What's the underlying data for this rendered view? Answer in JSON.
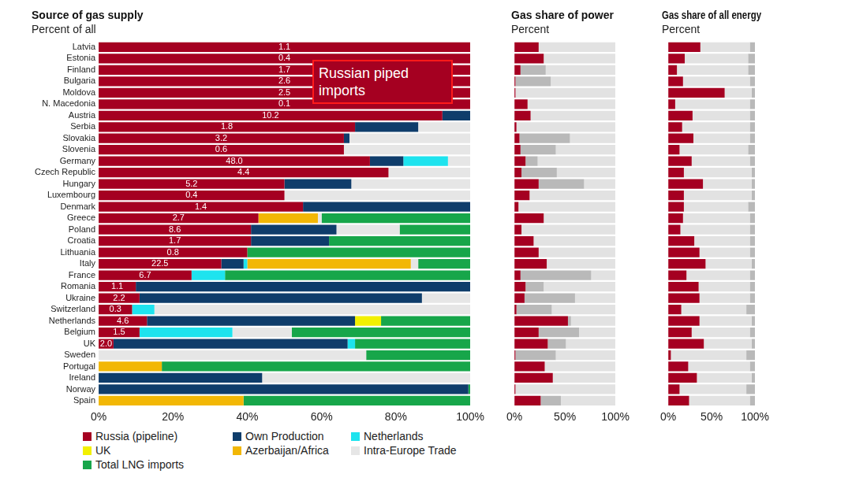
{
  "chart_data": [
    {
      "type": "bar",
      "title": "Source of gas supply",
      "subtitle": "Percent of all",
      "orientation": "horizontal",
      "stacked": true,
      "grid": false,
      "legend": "bottom",
      "annotation": "Russian piped imports",
      "categories": [
        "Latvia",
        "Estonia",
        "Finland",
        "Bulgaria",
        "Moldova",
        "N. Macedonia",
        "Austria",
        "Serbia",
        "Slovakia",
        "Slovenia",
        "Germany",
        "Czech Republic",
        "Hungary",
        "Luxembourg",
        "Denmark",
        "Greece",
        "Poland",
        "Croatia",
        "Lithuania",
        "Italy",
        "France",
        "Romania",
        "Ukraine",
        "Switzerland",
        "Netherlands",
        "Belgium",
        "UK",
        "Sweden",
        "Portugal",
        "Ireland",
        "Norway",
        "Spain"
      ],
      "xlim": [
        0,
        100
      ],
      "xticks": [
        {
          "value": 0,
          "label": "0%"
        },
        {
          "value": 20,
          "label": "20%"
        },
        {
          "value": 40,
          "label": "40%"
        },
        {
          "value": 60,
          "label": "60%"
        },
        {
          "value": 80,
          "label": "80%"
        },
        {
          "value": 100,
          "label": "100%"
        }
      ],
      "series": [
        {
          "name": "Russia (pipeline)",
          "color": "#a50021",
          "values": [
            100,
            100,
            100,
            100,
            100,
            100,
            92.5,
            69,
            66,
            66,
            73,
            78,
            50,
            50,
            55,
            43,
            41,
            41,
            40,
            33,
            25,
            10,
            11,
            9,
            13,
            11,
            4,
            0,
            0,
            0,
            0,
            0
          ],
          "volumes": [
            "1.1",
            "0.4",
            "1.7",
            "2.6",
            "2.5",
            "0.1",
            "10.2",
            "1.8",
            "3.2",
            "0.6",
            "48.0",
            "4.4",
            "5.2",
            "0.4",
            "1.4",
            "2.7",
            "8.6",
            "1.7",
            "0.8",
            "22.5",
            "6.7",
            "1.1",
            "2.2",
            "0.3",
            "4.6",
            "1.5",
            "2.0",
            null,
            null,
            null,
            null,
            null
          ]
        },
        {
          "name": "Own Production",
          "color": "#0f3d6b",
          "values": [
            0,
            0,
            0,
            0,
            0,
            0,
            7.5,
            17,
            1.5,
            0,
            9,
            0,
            18,
            0,
            45,
            0,
            23,
            21,
            0,
            6,
            0,
            90,
            76,
            0,
            56,
            0,
            63,
            0,
            0,
            44,
            99.5,
            0
          ]
        },
        {
          "name": "Netherlands",
          "color": "#1ee3ee",
          "values": [
            0,
            0,
            0,
            0,
            0,
            0,
            0,
            0,
            0,
            0,
            12,
            0,
            0,
            0,
            0,
            0,
            0,
            0,
            0,
            1,
            9,
            0,
            0,
            6,
            0,
            25,
            2,
            0,
            0,
            0,
            0,
            0
          ]
        },
        {
          "name": "UK",
          "color": "#f2f000",
          "values": [
            0,
            0,
            0,
            0,
            0,
            0,
            0,
            0,
            0,
            0,
            0,
            0,
            0,
            0,
            0,
            0,
            0,
            0,
            0,
            0,
            0,
            0,
            0,
            0,
            7,
            0,
            0,
            0,
            0,
            0,
            0,
            0
          ]
        },
        {
          "name": "Azerbaijan/Africa",
          "color": "#f2b705",
          "values": [
            0,
            0,
            0,
            0,
            0,
            0,
            0,
            0,
            0,
            0,
            0,
            0,
            0,
            0,
            0,
            16,
            0,
            0,
            0,
            44,
            0,
            0,
            0,
            0,
            0,
            0,
            0,
            0,
            17,
            0,
            0,
            39
          ]
        },
        {
          "name": "Intra-Europe Trade",
          "color": "#e6e6e6",
          "values": [
            0,
            0,
            0,
            0,
            0,
            0,
            0,
            14,
            32.5,
            34,
            6,
            22,
            32,
            50,
            0,
            1,
            17,
            0,
            0,
            2,
            0,
            0,
            13,
            85,
            0,
            16,
            0,
            72,
            0,
            56,
            0,
            0
          ]
        },
        {
          "name": "Total LNG imports",
          "color": "#17a64a",
          "values": [
            0,
            0,
            0,
            0,
            0,
            0,
            0,
            0,
            0,
            0,
            0,
            0,
            0,
            0,
            0,
            40,
            19,
            38,
            60,
            14,
            66,
            0,
            0,
            0,
            24,
            48,
            31,
            28,
            83,
            0,
            0.5,
            61
          ]
        }
      ]
    },
    {
      "type": "bar",
      "title": "Gas share of power",
      "subtitle": "Percent",
      "orientation": "horizontal",
      "stacked": true,
      "grid": false,
      "tick_labels": "x",
      "categories": [
        "Latvia",
        "Estonia",
        "Finland",
        "Bulgaria",
        "Moldova",
        "N. Macedonia",
        "Austria",
        "Serbia",
        "Slovakia",
        "Slovenia",
        "Germany",
        "Czech Republic",
        "Hungary",
        "Luxembourg",
        "Denmark",
        "Greece",
        "Poland",
        "Croatia",
        "Lithuania",
        "Italy",
        "France",
        "Romania",
        "Ukraine",
        "Switzerland",
        "Netherlands",
        "Belgium",
        "UK",
        "Sweden",
        "Portugal",
        "Ireland",
        "Norway",
        "Spain"
      ],
      "xlim": [
        0,
        100
      ],
      "xticks": [
        {
          "value": 0,
          "label": "0%"
        },
        {
          "value": 50,
          "label": "50%"
        },
        {
          "value": 100,
          "label": "100%"
        }
      ],
      "series": [
        {
          "color": "#a50021",
          "values": [
            24,
            29,
            6,
            1,
            1,
            13,
            16,
            2,
            5,
            6,
            11,
            7,
            24,
            15,
            4,
            29,
            7,
            19,
            24,
            32,
            6,
            11,
            10,
            2,
            53,
            24,
            33,
            1,
            30,
            38,
            1,
            26
          ]
        },
        {
          "color": "#b9b9b9",
          "values": [
            0,
            0,
            25,
            35,
            0,
            0,
            0,
            0,
            50,
            35,
            12,
            35,
            45,
            0,
            0,
            0,
            0,
            0,
            0,
            0,
            70,
            18,
            50,
            35,
            3,
            40,
            18,
            40,
            0,
            0,
            0,
            20
          ]
        },
        {
          "color": "#e2e2e2",
          "values": [
            76,
            71,
            69,
            64,
            99,
            87,
            84,
            98,
            45,
            59,
            77,
            58,
            31,
            85,
            96,
            71,
            93,
            81,
            76,
            68,
            24,
            71,
            40,
            63,
            44,
            36,
            49,
            59,
            70,
            62,
            99,
            54
          ]
        }
      ]
    },
    {
      "type": "bar",
      "title": "Gas share of all energy",
      "subtitle": "Percent",
      "orientation": "horizontal",
      "stacked": true,
      "grid": false,
      "tick_labels": "x",
      "categories": [
        "Latvia",
        "Estonia",
        "Finland",
        "Bulgaria",
        "Moldova",
        "N. Macedonia",
        "Austria",
        "Serbia",
        "Slovakia",
        "Slovenia",
        "Germany",
        "Czech Republic",
        "Hungary",
        "Luxembourg",
        "Denmark",
        "Greece",
        "Poland",
        "Croatia",
        "Lithuania",
        "Italy",
        "France",
        "Romania",
        "Ukraine",
        "Switzerland",
        "Netherlands",
        "Belgium",
        "UK",
        "Sweden",
        "Portugal",
        "Ireland",
        "Norway",
        "Spain"
      ],
      "xlim": [
        0,
        100
      ],
      "xticks": [
        {
          "value": 0,
          "label": "0%"
        },
        {
          "value": 50,
          "label": "50%"
        },
        {
          "value": 100,
          "label": "100%"
        }
      ],
      "series": [
        {
          "color": "#a50021",
          "values": [
            37,
            19,
            10,
            17,
            65,
            8,
            28,
            16,
            29,
            13,
            27,
            18,
            40,
            18,
            18,
            17,
            14,
            30,
            36,
            43,
            21,
            35,
            36,
            15,
            36,
            27,
            41,
            3,
            23,
            33,
            13,
            24
          ]
        },
        {
          "color": "#e2e2e2",
          "values": [
            57,
            73,
            82,
            77,
            31,
            86,
            66,
            78,
            65,
            79,
            67,
            78,
            56,
            78,
            74,
            77,
            80,
            64,
            58,
            53,
            73,
            59,
            58,
            75,
            60,
            67,
            55,
            87,
            71,
            63,
            77,
            70
          ]
        },
        {
          "color": "#b9b9b9",
          "values": [
            6,
            8,
            8,
            6,
            4,
            6,
            6,
            6,
            6,
            8,
            6,
            4,
            4,
            4,
            8,
            6,
            6,
            6,
            6,
            4,
            6,
            6,
            6,
            10,
            4,
            6,
            4,
            10,
            6,
            4,
            10,
            6
          ]
        }
      ]
    }
  ]
}
